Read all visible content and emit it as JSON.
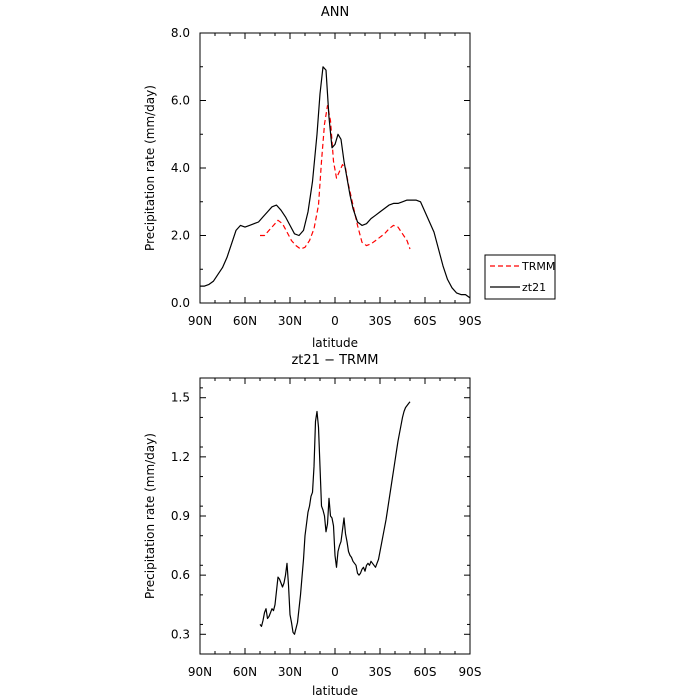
{
  "chart_data": [
    {
      "type": "line",
      "title": "ANN",
      "xlabel": "latitude",
      "ylabel": "Precipitation rate (mm/day)",
      "xlim": [
        90,
        -90
      ],
      "ylim": [
        0,
        8
      ],
      "xticks": [
        90,
        60,
        30,
        0,
        -30,
        -60,
        -90
      ],
      "xtick_labels": [
        "90N",
        "60N",
        "30N",
        "0",
        "30S",
        "60S",
        "90S"
      ],
      "yticks": [
        0,
        2,
        4,
        6,
        8
      ],
      "ytick_labels": [
        "0.0",
        "2.0",
        "4.0",
        "6.0",
        "8.0"
      ],
      "legend": "right",
      "series": [
        {
          "name": "TRMM",
          "color": "#ff0000",
          "dash": "dashed",
          "x": [
            50,
            47,
            44,
            41,
            38,
            35,
            32,
            29,
            26,
            23,
            20,
            17,
            14,
            11,
            9,
            7,
            5,
            3,
            1,
            -1,
            -3,
            -5,
            -7,
            -9,
            -12,
            -15,
            -18,
            -21,
            -24,
            -27,
            -30,
            -33,
            -36,
            -39,
            -42,
            -45,
            -48,
            -50
          ],
          "y": [
            2.0,
            2.0,
            2.15,
            2.3,
            2.45,
            2.35,
            2.1,
            1.85,
            1.7,
            1.6,
            1.65,
            1.85,
            2.2,
            2.9,
            4.2,
            5.3,
            5.85,
            5.4,
            4.2,
            3.7,
            3.9,
            4.1,
            4.0,
            3.5,
            2.9,
            2.3,
            1.8,
            1.7,
            1.75,
            1.85,
            1.95,
            2.05,
            2.2,
            2.3,
            2.25,
            2.05,
            1.85,
            1.6
          ]
        },
        {
          "name": "zt21",
          "color": "#000000",
          "dash": "solid",
          "x": [
            90,
            87,
            84,
            81,
            78,
            75,
            72,
            69,
            66,
            63,
            60,
            57,
            54,
            51,
            48,
            45,
            42,
            39,
            36,
            33,
            30,
            27,
            24,
            21,
            18,
            15,
            12,
            10,
            8,
            6,
            4,
            2,
            0,
            -2,
            -4,
            -6,
            -8,
            -10,
            -12,
            -15,
            -18,
            -21,
            -24,
            -27,
            -30,
            -33,
            -36,
            -39,
            -42,
            -45,
            -48,
            -51,
            -54,
            -57,
            -60,
            -63,
            -66,
            -69,
            -72,
            -75,
            -78,
            -81,
            -84,
            -87,
            -90
          ],
          "y": [
            0.5,
            0.5,
            0.55,
            0.65,
            0.85,
            1.05,
            1.35,
            1.75,
            2.15,
            2.3,
            2.25,
            2.3,
            2.35,
            2.4,
            2.55,
            2.7,
            2.85,
            2.9,
            2.75,
            2.55,
            2.3,
            2.05,
            2.0,
            2.15,
            2.7,
            3.6,
            5.0,
            6.2,
            7.0,
            6.9,
            5.5,
            4.6,
            4.7,
            5.0,
            4.85,
            4.2,
            3.7,
            3.2,
            2.8,
            2.4,
            2.3,
            2.35,
            2.5,
            2.6,
            2.7,
            2.8,
            2.9,
            2.95,
            2.95,
            3.0,
            3.05,
            3.05,
            3.05,
            3.0,
            2.7,
            2.4,
            2.1,
            1.6,
            1.1,
            0.7,
            0.45,
            0.3,
            0.25,
            0.25,
            0.15
          ]
        }
      ]
    },
    {
      "type": "line",
      "title": "zt21 − TRMM",
      "xlabel": "latitude",
      "ylabel": "Precipitation rate (mm/day)",
      "xlim": [
        90,
        -90
      ],
      "ylim": [
        0.2,
        1.6
      ],
      "xticks": [
        90,
        60,
        30,
        0,
        -30,
        -60,
        -90
      ],
      "xtick_labels": [
        "90N",
        "60N",
        "30N",
        "0",
        "30S",
        "60S",
        "90S"
      ],
      "yticks": [
        0.3,
        0.6,
        0.9,
        1.2,
        1.5
      ],
      "ytick_labels": [
        "0.3",
        "0.6",
        "0.9",
        "1.2",
        "1.5"
      ],
      "series": [
        {
          "color": "#000000",
          "x": [
            50,
            49,
            48,
            47,
            46,
            45,
            44,
            43,
            42,
            41,
            40,
            39,
            38,
            37,
            36,
            35,
            34,
            33,
            32,
            31,
            30,
            29,
            28,
            27,
            26,
            25,
            24,
            23,
            22,
            21,
            20,
            19,
            18,
            17,
            16,
            15,
            14,
            13,
            12,
            11,
            10,
            9,
            8,
            7,
            6,
            5,
            4,
            3,
            2,
            1,
            0,
            -1,
            -2,
            -3,
            -4,
            -5,
            -6,
            -7,
            -8,
            -9,
            -10,
            -11,
            -12,
            -13,
            -14,
            -15,
            -16,
            -17,
            -18,
            -19,
            -20,
            -21,
            -22,
            -23,
            -24,
            -25,
            -26,
            -27,
            -28,
            -29,
            -30,
            -31,
            -32,
            -33,
            -34,
            -35,
            -36,
            -37,
            -38,
            -39,
            -40,
            -41,
            -42,
            -43,
            -44,
            -45,
            -46,
            -47,
            -48,
            -49,
            -50
          ],
          "y": [
            0.35,
            0.34,
            0.37,
            0.41,
            0.43,
            0.38,
            0.39,
            0.41,
            0.43,
            0.42,
            0.45,
            0.52,
            0.59,
            0.58,
            0.56,
            0.54,
            0.56,
            0.6,
            0.66,
            0.55,
            0.4,
            0.36,
            0.31,
            0.3,
            0.33,
            0.36,
            0.43,
            0.5,
            0.59,
            0.68,
            0.8,
            0.86,
            0.92,
            0.95,
            1.0,
            1.02,
            1.15,
            1.38,
            1.43,
            1.35,
            1.15,
            0.95,
            0.93,
            0.9,
            0.82,
            0.86,
            0.99,
            0.9,
            0.89,
            0.85,
            0.7,
            0.64,
            0.72,
            0.75,
            0.77,
            0.83,
            0.89,
            0.81,
            0.77,
            0.72,
            0.7,
            0.69,
            0.67,
            0.66,
            0.65,
            0.61,
            0.6,
            0.61,
            0.63,
            0.64,
            0.62,
            0.65,
            0.66,
            0.65,
            0.67,
            0.66,
            0.65,
            0.64,
            0.66,
            0.68,
            0.72,
            0.76,
            0.8,
            0.84,
            0.88,
            0.93,
            0.98,
            1.03,
            1.08,
            1.13,
            1.18,
            1.23,
            1.28,
            1.32,
            1.36,
            1.4,
            1.43,
            1.45,
            1.46,
            1.47,
            1.48
          ]
        }
      ]
    }
  ]
}
